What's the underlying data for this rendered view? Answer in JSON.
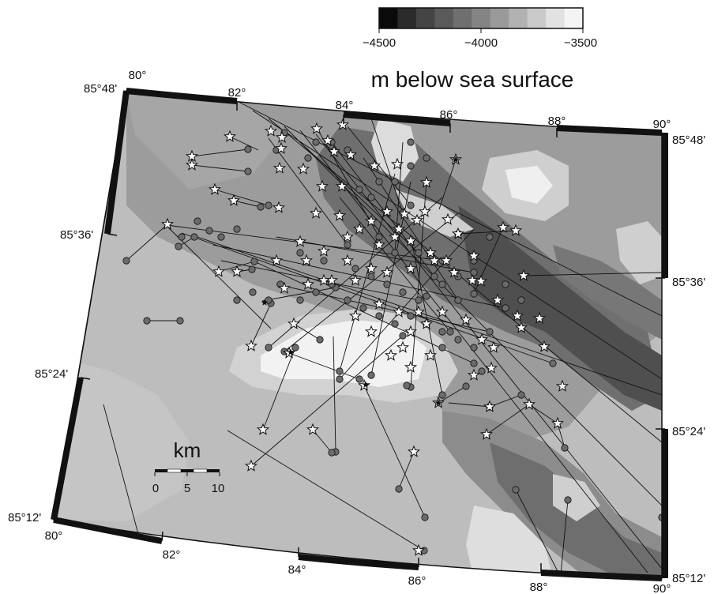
{
  "colorbar": {
    "tick_labels": [
      "−4500",
      "−4000",
      "−3500"
    ],
    "range": [
      -4500,
      -3500
    ],
    "shades": [
      "#0a0a0a",
      "#2b2b2b",
      "#444444",
      "#5a5a5a",
      "#6f6f6f",
      "#848484",
      "#9a9a9a",
      "#b2b2b2",
      "#cacaca",
      "#e2e2e2",
      "#f4f4f4"
    ]
  },
  "title": "m below sea surface",
  "scale_bar": {
    "unit": "km",
    "ticks": [
      "0",
      "5",
      "10"
    ]
  },
  "longitude_labels": {
    "top": [
      "80°",
      "82°",
      "84°",
      "86°",
      "88°",
      "90°"
    ],
    "bottom": [
      "80°",
      "82°",
      "84°",
      "86°",
      "88°",
      "90°"
    ]
  },
  "latitude_labels": {
    "left": [
      "85°48'",
      "85°36'",
      "85°24'",
      "85°12'"
    ],
    "right": [
      "85°48'",
      "85°36'",
      "85°24'",
      "85°12'"
    ]
  },
  "colors": {
    "background": "#bdbdbd",
    "frame": "#111111",
    "circle_fill": "#6b6b6b",
    "star_fill": "#ffffff"
  }
}
